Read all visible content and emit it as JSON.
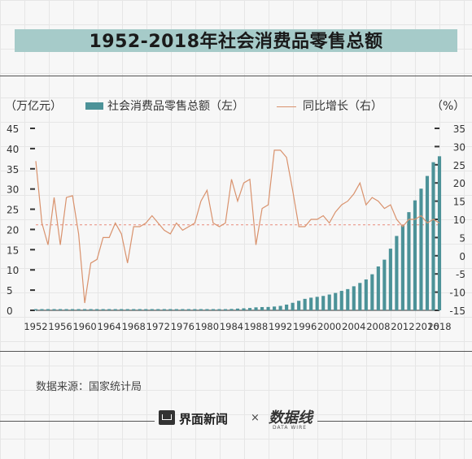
{
  "title": "1952-2018年社会消费品零售总额",
  "legend": {
    "left_unit": "（万亿元）",
    "bar_label": "社会消费品零售总额（左）",
    "line_label": "同比增长（右）",
    "right_unit": "（%）"
  },
  "source": "数据来源：国家统计局",
  "footer": {
    "brand1": "界面新闻",
    "times": "×",
    "brand2": "数据线",
    "brand2_sub": "DATA WIRE"
  },
  "colors": {
    "bar": "#4c9298",
    "line": "#d9926d",
    "ref": "#e88a7a",
    "title_bar": "#a6cbc9"
  },
  "chart_data": {
    "type": "bar",
    "x_ticks": [
      "1952",
      "1956",
      "1960",
      "1964",
      "1968",
      "1972",
      "1976",
      "1980",
      "1984",
      "1988",
      "1992",
      "1996",
      "2000",
      "2004",
      "2008",
      "2012",
      "2016",
      "2018"
    ],
    "left_axis": {
      "ylim": [
        0,
        45
      ],
      "ticks": [
        "45",
        "40",
        "35",
        "30",
        "25",
        "20",
        "15",
        "10",
        "5",
        "0"
      ]
    },
    "right_axis": {
      "ylim": [
        -15,
        35
      ],
      "ticks": [
        "35",
        "30",
        "25",
        "20",
        "15",
        "10",
        "5",
        "0",
        "-5",
        "-10",
        "-15"
      ]
    },
    "reference_line": 8.5,
    "series": [
      {
        "name": "社会消费品零售总额（左）",
        "axis": "left",
        "type": "bar",
        "years": [
          1952,
          1953,
          1954,
          1955,
          1956,
          1957,
          1958,
          1959,
          1960,
          1961,
          1962,
          1963,
          1964,
          1965,
          1966,
          1967,
          1968,
          1969,
          1970,
          1971,
          1972,
          1973,
          1974,
          1975,
          1976,
          1977,
          1978,
          1979,
          1980,
          1981,
          1982,
          1983,
          1984,
          1985,
          1986,
          1987,
          1988,
          1989,
          1990,
          1991,
          1992,
          1993,
          1994,
          1995,
          1996,
          1997,
          1998,
          1999,
          2000,
          2001,
          2002,
          2003,
          2004,
          2005,
          2006,
          2007,
          2008,
          2009,
          2010,
          2011,
          2012,
          2013,
          2014,
          2015,
          2016,
          2017,
          2018
        ],
        "values": [
          0.03,
          0.03,
          0.04,
          0.04,
          0.05,
          0.05,
          0.05,
          0.06,
          0.07,
          0.06,
          0.06,
          0.06,
          0.06,
          0.07,
          0.07,
          0.08,
          0.07,
          0.08,
          0.09,
          0.09,
          0.1,
          0.11,
          0.11,
          0.12,
          0.12,
          0.13,
          0.16,
          0.18,
          0.21,
          0.24,
          0.26,
          0.28,
          0.34,
          0.43,
          0.5,
          0.58,
          0.74,
          0.81,
          0.83,
          0.94,
          1.1,
          1.42,
          1.86,
          2.36,
          2.84,
          3.13,
          3.34,
          3.56,
          3.91,
          4.3,
          4.81,
          5.25,
          5.95,
          6.77,
          7.64,
          8.92,
          10.85,
          12.53,
          15.25,
          18.39,
          21.03,
          24.28,
          27.19,
          30.09,
          33.23,
          36.63,
          38.1
        ]
      },
      {
        "name": "同比增长（右）",
        "axis": "right",
        "type": "line",
        "years": [
          1952,
          1953,
          1954,
          1955,
          1956,
          1957,
          1958,
          1959,
          1960,
          1961,
          1962,
          1963,
          1964,
          1965,
          1966,
          1967,
          1968,
          1969,
          1970,
          1971,
          1972,
          1973,
          1974,
          1975,
          1976,
          1977,
          1978,
          1979,
          1980,
          1981,
          1982,
          1983,
          1984,
          1985,
          1986,
          1987,
          1988,
          1989,
          1990,
          1991,
          1992,
          1993,
          1994,
          1995,
          1996,
          1997,
          1998,
          1999,
          2000,
          2001,
          2002,
          2003,
          2004,
          2005,
          2006,
          2007,
          2008,
          2009,
          2010,
          2011,
          2012,
          2013,
          2014,
          2015,
          2016,
          2017,
          2018
        ],
        "values": [
          26,
          9,
          3,
          16,
          3,
          16,
          16.5,
          6,
          -13,
          -2,
          -1,
          5,
          5,
          9,
          6,
          -2,
          8,
          8,
          9,
          11,
          9,
          7,
          6,
          9,
          7,
          8,
          9,
          15,
          18,
          9,
          8,
          9,
          21,
          15,
          20,
          21,
          3,
          13,
          14,
          29,
          29,
          27,
          18,
          8,
          8,
          10,
          10,
          11,
          9,
          12,
          14,
          15,
          17,
          20,
          14,
          16,
          15,
          13,
          14,
          10,
          8,
          10,
          10,
          11,
          9,
          10,
          9
        ]
      }
    ]
  }
}
